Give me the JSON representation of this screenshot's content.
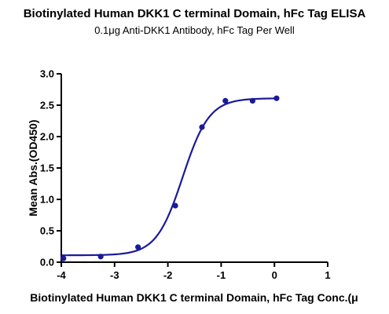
{
  "chart_data": {
    "type": "scatter",
    "title": "Biotinylated Human DKK1 C terminal Domain, hFc Tag ELISA",
    "subtitle": "0.1μg Anti-DKK1 Antibody, hFc Tag Per Well",
    "xlabel": "Biotinylated Human DKK1 C terminal Domain, hFc Tag Conc.(μ",
    "ylabel": "Mean Abs.(OD450)",
    "xlim": [
      -4,
      1
    ],
    "ylim": [
      0,
      3.0
    ],
    "x_ticks": [
      "-4",
      "-3",
      "-2",
      "-1",
      "0",
      "1"
    ],
    "y_ticks": [
      "0.0",
      "0.5",
      "1.0",
      "1.5",
      "2.0",
      "2.5",
      "3.0"
    ],
    "grid": false,
    "colors": {
      "series": "#1a1a9a",
      "axis": "#000000"
    },
    "series": [
      {
        "x": [
          -3.96,
          -3.26,
          -2.56,
          -1.86,
          -1.36,
          -0.92,
          -0.41,
          0.04
        ],
        "y": [
          0.06,
          0.09,
          0.24,
          0.9,
          2.15,
          2.57,
          2.57,
          2.61
        ]
      }
    ],
    "fit_curve": {
      "bottom": 0.11,
      "top": 2.61,
      "log_ec50": -1.72,
      "hill_slope": 1.75
    }
  }
}
